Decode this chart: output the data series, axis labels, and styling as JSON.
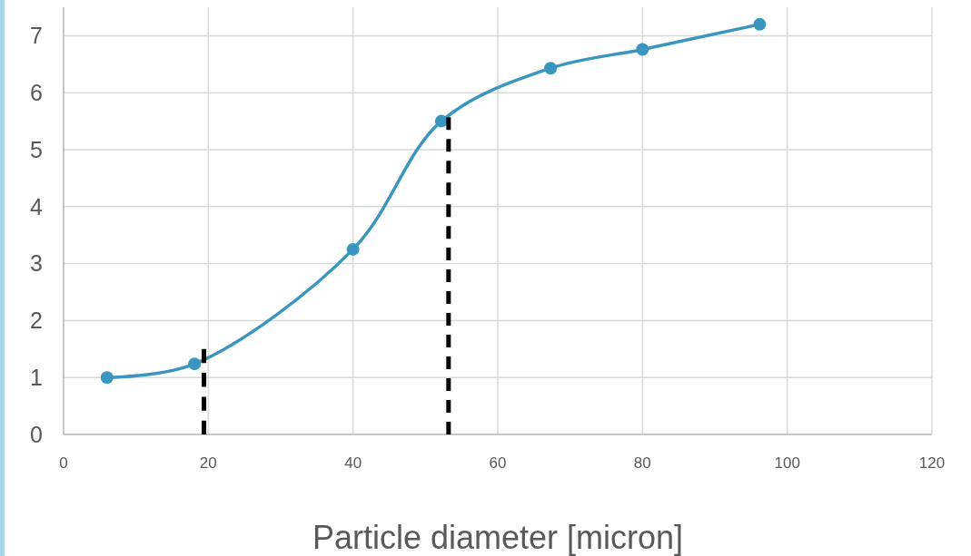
{
  "chart_data": {
    "type": "line",
    "xlabel": "Particle diameter [micron]",
    "xlim": [
      0,
      120
    ],
    "xticks": [
      0,
      20,
      40,
      60,
      80,
      100,
      120
    ],
    "ylim": [
      0,
      7.5
    ],
    "yticks": [
      0,
      1,
      2,
      3,
      4,
      5,
      6,
      7
    ],
    "grid": true,
    "series": [
      {
        "color": "#3a96bf",
        "x": [
          6,
          18.1,
          40,
          52.2,
          67.3,
          80,
          96.2
        ],
        "values": [
          1.0,
          1.24,
          3.25,
          5.5,
          6.43,
          6.76,
          7.2
        ],
        "marker": "circle",
        "line_style": "solid"
      },
      {
        "color": "#000000",
        "x": [
          19.4,
          19.4
        ],
        "values": [
          0,
          1.5
        ],
        "marker": "none",
        "line_style": "dashed"
      },
      {
        "color": "#000000",
        "x": [
          53.2,
          53.2
        ],
        "values": [
          0,
          5.57
        ],
        "marker": "none",
        "line_style": "dashed"
      }
    ]
  }
}
